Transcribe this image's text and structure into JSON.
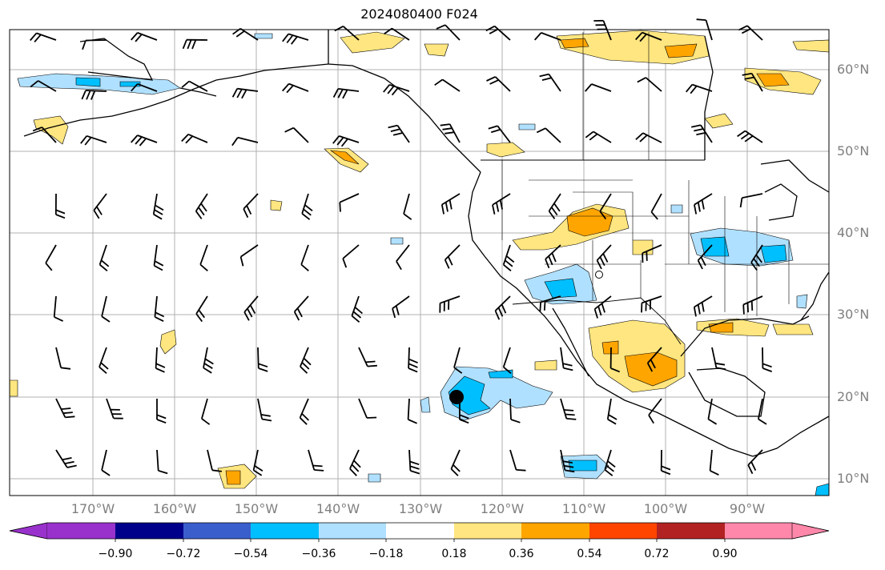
{
  "title": "2024080400 F024",
  "lat_labels": [
    "60°N",
    "50°N",
    "40°N",
    "30°N",
    "20°N",
    "10°N"
  ],
  "lon_labels": [
    "170°W",
    "160°W",
    "150°W",
    "140°W",
    "130°W",
    "120°W",
    "110°W",
    "100°W",
    "90°W"
  ],
  "colorbar": {
    "ticks": [
      "−0.90",
      "−0.72",
      "−0.54",
      "−0.36",
      "−0.18",
      "0.18",
      "0.36",
      "0.54",
      "0.72",
      "0.90"
    ],
    "colors": [
      "#9932cc",
      "#00008b",
      "#3a5fcd",
      "#00bfff",
      "#b0e0ff",
      "#ffffff",
      "#ffe680",
      "#ffa500",
      "#ff4500",
      "#b22222",
      "#ff88aa"
    ]
  },
  "colors": {
    "land_border": "#000000",
    "gridline": "#b0b0b0",
    "positive_light": "#ffe680",
    "positive_mid": "#ffa500",
    "negative_light": "#b0e0ff",
    "negative_mid": "#00bfff",
    "marker": "#000000"
  },
  "marker": {
    "lon": -126,
    "lat": 20
  }
}
